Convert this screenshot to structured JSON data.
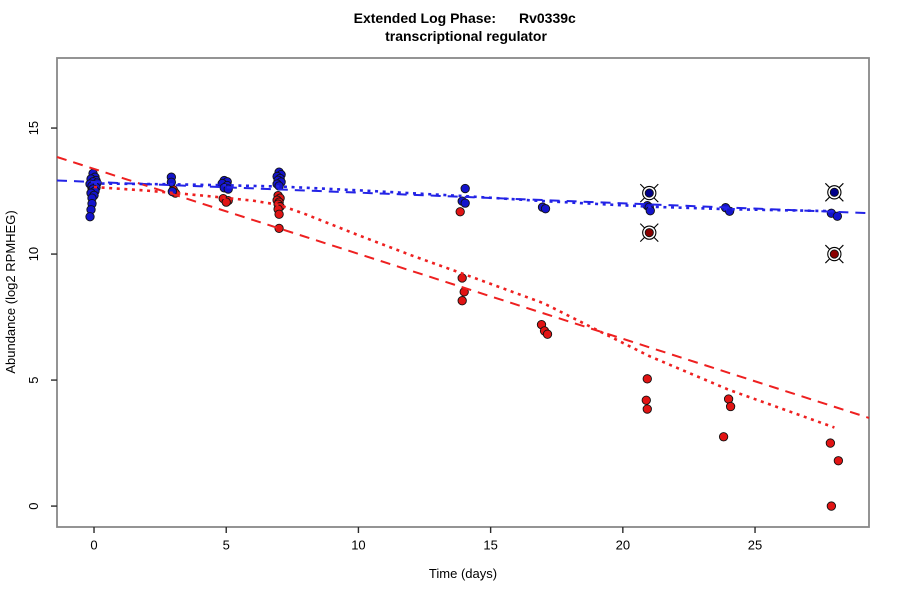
{
  "title": {
    "phase": "Extended Log Phase:",
    "gene": "Rv0339c",
    "subtitle": "transcriptional regulator"
  },
  "axes": {
    "x_label": "Time (days)",
    "y_label": "Abundance (log2 RPMHEG)",
    "x_ticks": [
      0,
      5,
      10,
      15,
      20,
      25
    ],
    "y_ticks": [
      0,
      5,
      10,
      15
    ],
    "x_range": [
      -1.4,
      29.31
    ],
    "y_range": [
      -0.83,
      17.78
    ]
  },
  "colors": {
    "blue": "#1414cc",
    "red": "#e11414",
    "blue_dark": "#00008b",
    "red_dark": "#8b0000",
    "blue_line": "#2323e6",
    "red_line": "#ee2020",
    "box": "#888888",
    "tick": "#2a2a2a",
    "point_stroke": "#111111"
  },
  "chart_data": {
    "type": "scatter",
    "title": "Extended Log Phase: Rv0339c transcriptional regulator",
    "xlabel": "Time (days)",
    "ylabel": "Abundance (log2 RPMHEG)",
    "xlim": [
      -1.4,
      29.31
    ],
    "ylim": [
      -0.83,
      17.78
    ],
    "grid": false,
    "legend": "none",
    "series": [
      {
        "name": "red_points",
        "color": "red",
        "marker": "dot",
        "points": [
          [
            0,
            12.72,
            0
          ],
          [
            0,
            12.6,
            -2
          ],
          [
            3,
            12.55,
            0
          ],
          [
            3,
            12.42,
            2
          ],
          [
            5,
            12.2,
            -3
          ],
          [
            5,
            12.12,
            2
          ],
          [
            5,
            12.06,
            0
          ],
          [
            7,
            12.32,
            -1
          ],
          [
            7,
            12.22,
            1
          ],
          [
            7,
            12.14,
            -2
          ],
          [
            7,
            12.06,
            0
          ],
          [
            7,
            11.98,
            -1
          ],
          [
            7,
            11.88,
            1
          ],
          [
            7,
            11.78,
            -1
          ],
          [
            7,
            11.58,
            0
          ],
          [
            7,
            11.02,
            0
          ],
          [
            14,
            11.68,
            -4
          ],
          [
            14,
            9.05,
            -2
          ],
          [
            14,
            8.5,
            0
          ],
          [
            14,
            8.15,
            -2
          ],
          [
            17,
            7.2,
            -2
          ],
          [
            17,
            6.95,
            1
          ],
          [
            17,
            6.82,
            4
          ],
          [
            21,
            5.05,
            -2
          ],
          [
            21,
            4.2,
            -3
          ],
          [
            21,
            3.85,
            -2
          ],
          [
            24,
            4.25,
            0
          ],
          [
            24,
            3.95,
            2
          ],
          [
            24,
            2.75,
            -5
          ],
          [
            28,
            2.5,
            -4
          ],
          [
            28,
            1.8,
            4
          ],
          [
            28,
            0.0,
            -3
          ]
        ]
      },
      {
        "name": "blue_points",
        "color": "blue",
        "marker": "dot",
        "points": [
          [
            0,
            13.2,
            -1
          ],
          [
            0,
            13.05,
            1
          ],
          [
            0,
            12.98,
            -3
          ],
          [
            0,
            12.92,
            2
          ],
          [
            0,
            12.87,
            -1
          ],
          [
            0,
            12.82,
            3
          ],
          [
            0,
            12.78,
            -4
          ],
          [
            0,
            12.74,
            0
          ],
          [
            0,
            12.7,
            -2
          ],
          [
            0,
            12.64,
            2
          ],
          [
            0,
            12.58,
            -1
          ],
          [
            0,
            12.5,
            1
          ],
          [
            0,
            12.42,
            -3
          ],
          [
            0,
            12.33,
            0
          ],
          [
            0,
            12.22,
            -2
          ],
          [
            0,
            12.0,
            -2
          ],
          [
            0,
            11.76,
            -3
          ],
          [
            0,
            11.48,
            -4
          ],
          [
            3,
            13.05,
            -2
          ],
          [
            3,
            12.85,
            -2
          ],
          [
            3,
            12.48,
            -1
          ],
          [
            5,
            12.92,
            -2
          ],
          [
            5,
            12.87,
            1
          ],
          [
            5,
            12.8,
            -4
          ],
          [
            5,
            12.72,
            1
          ],
          [
            5,
            12.63,
            -2
          ],
          [
            5,
            12.58,
            2
          ],
          [
            7,
            13.25,
            0
          ],
          [
            7,
            13.15,
            2
          ],
          [
            7,
            13.08,
            -2
          ],
          [
            7,
            13.0,
            1
          ],
          [
            7,
            12.93,
            -1
          ],
          [
            7,
            12.86,
            2
          ],
          [
            7,
            12.78,
            -2
          ],
          [
            7,
            12.7,
            0
          ],
          [
            14,
            12.6,
            1
          ],
          [
            14,
            12.1,
            -2
          ],
          [
            14,
            12.02,
            1
          ],
          [
            17,
            11.86,
            -1
          ],
          [
            17,
            11.8,
            2
          ],
          [
            21,
            11.92,
            -2
          ],
          [
            21,
            11.86,
            0
          ],
          [
            21,
            11.72,
            1
          ],
          [
            24,
            11.84,
            -3
          ],
          [
            24,
            11.7,
            1
          ],
          [
            28,
            11.62,
            -3
          ],
          [
            28,
            11.5,
            3
          ]
        ]
      },
      {
        "name": "blue_flagged_outliers",
        "color": "blue_dark",
        "marker": "circle_x",
        "points": [
          [
            21,
            12.42,
            0
          ],
          [
            28,
            12.45,
            0
          ]
        ]
      },
      {
        "name": "red_flagged_outliers",
        "color": "red_dark",
        "marker": "circle_x",
        "points": [
          [
            21,
            10.85,
            0
          ],
          [
            28,
            10.0,
            0
          ]
        ]
      }
    ],
    "trend_lines": [
      {
        "name": "blue_linear_fit",
        "color": "blue_line",
        "dash": "long",
        "points": [
          [
            -1.4,
            12.92
          ],
          [
            29.31,
            11.62
          ]
        ]
      },
      {
        "name": "red_linear_fit",
        "color": "red_line",
        "dash": "long",
        "points": [
          [
            -1.4,
            13.85
          ],
          [
            29.31,
            3.5
          ]
        ]
      },
      {
        "name": "blue_lowess_fit",
        "color": "blue_line",
        "dash": "dot",
        "points": [
          [
            0,
            12.8
          ],
          [
            3,
            12.77
          ],
          [
            5,
            12.73
          ],
          [
            7,
            12.68
          ],
          [
            10,
            12.53
          ],
          [
            14,
            12.3
          ],
          [
            17,
            12.1
          ],
          [
            21,
            11.88
          ],
          [
            24,
            11.78
          ],
          [
            28,
            11.7
          ]
        ]
      },
      {
        "name": "red_lowess_fit",
        "color": "red_line",
        "dash": "dot",
        "points": [
          [
            0,
            12.66
          ],
          [
            2,
            12.52
          ],
          [
            4,
            12.33
          ],
          [
            6,
            12.12
          ],
          [
            7,
            11.95
          ],
          [
            8,
            11.58
          ],
          [
            10,
            10.75
          ],
          [
            12,
            9.95
          ],
          [
            14,
            9.2
          ],
          [
            17,
            8.05
          ],
          [
            19,
            7.0
          ],
          [
            21,
            5.95
          ],
          [
            24,
            4.62
          ],
          [
            28,
            3.12
          ]
        ]
      }
    ]
  }
}
